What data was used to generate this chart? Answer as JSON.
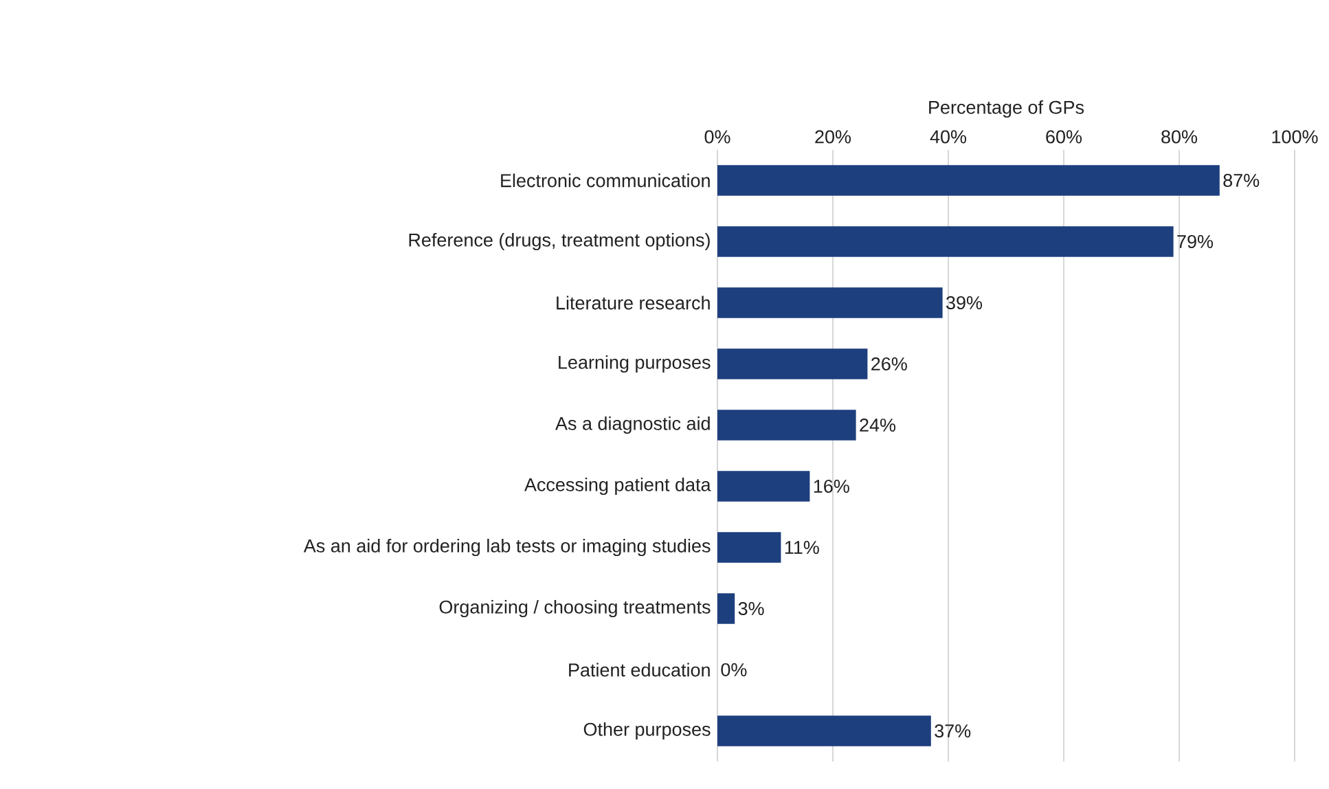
{
  "chart_data": {
    "type": "bar",
    "orientation": "horizontal",
    "xlabel": "Percentage of GPs",
    "categories": [
      "Electronic communication",
      "Reference (drugs, treatment options)",
      "Literature research",
      "Learning purposes",
      "As a diagnostic aid",
      "Accessing patient data",
      "As an aid for ordering lab tests or imaging studies",
      "Organizing / choosing treatments",
      "Patient education",
      "Other purposes"
    ],
    "values": [
      87,
      79,
      39,
      26,
      24,
      16,
      11,
      3,
      0,
      37
    ],
    "value_labels": [
      "87%",
      "79%",
      "39%",
      "26%",
      "24%",
      "16%",
      "11%",
      "3%",
      "0%",
      "37%"
    ],
    "color": "#1d3f7e",
    "xlim": [
      0,
      100
    ],
    "xticks": [
      {
        "value": 0,
        "label": "0%"
      },
      {
        "value": 20,
        "label": "20%"
      },
      {
        "value": 40,
        "label": "40%"
      },
      {
        "value": 60,
        "label": "60%"
      },
      {
        "value": 80,
        "label": "80%"
      },
      {
        "value": 100,
        "label": "100%"
      }
    ],
    "grid": "x"
  }
}
